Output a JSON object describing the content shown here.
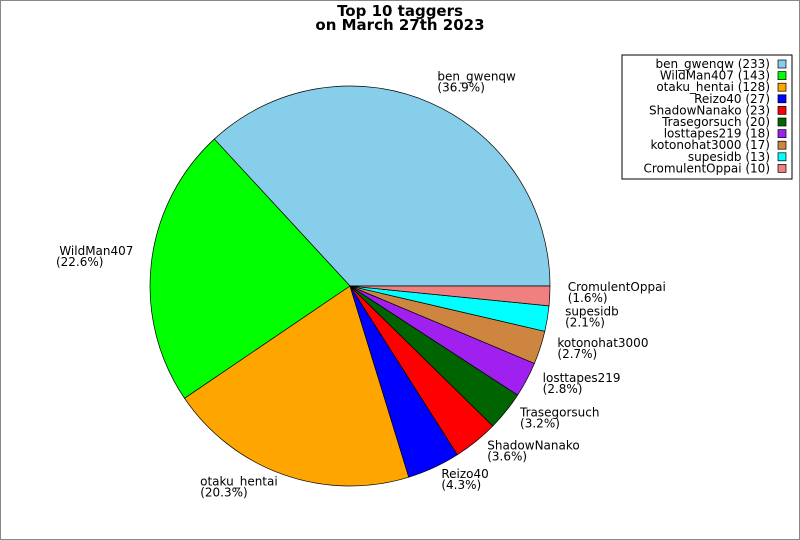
{
  "chart_data": {
    "type": "pie",
    "title": [
      "Top 10 taggers",
      "on March 27th 2023"
    ],
    "categories": [
      "ben_gwenqw",
      "WildMan407",
      "otaku_hentai",
      "Reizo40",
      "ShadowNanako",
      "Trasegorsuch",
      "losttapes219",
      "kotonohat3000",
      "supesidb",
      "CromulentOppai"
    ],
    "values": [
      233,
      143,
      128,
      27,
      23,
      20,
      18,
      17,
      13,
      10
    ],
    "percent_labels": [
      "(36.9%)",
      "(22.6%)",
      "(20.3%)",
      "(4.3%)",
      "(3.6%)",
      "(3.2%)",
      "(2.8%)",
      "(2.7%)",
      "(2.1%)",
      "(1.6%)"
    ],
    "legend_labels": [
      "ben_gwenqw (233)",
      "WildMan407 (143)",
      "otaku_hentai (128)",
      "Reizo40 (27)",
      "ShadowNanako (23)",
      "Trasegorsuch (20)",
      "losttapes219 (18)",
      "kotonohat3000 (17)",
      "supesidb (13)",
      "CromulentOppai (10)"
    ],
    "colors": [
      "#87ceeb",
      "#00ff00",
      "#ffa500",
      "#0000ff",
      "#ff0000",
      "#006400",
      "#a020f0",
      "#cd853f",
      "#00ffff",
      "#f08080"
    ],
    "legend_position": "upper right"
  }
}
